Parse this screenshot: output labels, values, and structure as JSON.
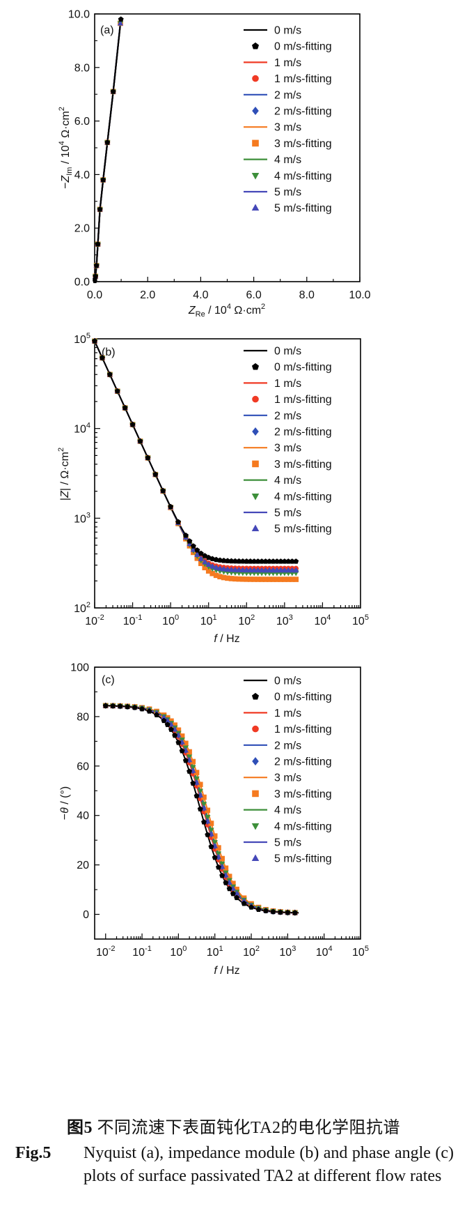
{
  "colors": {
    "0": "#000000",
    "1": "#f03a24",
    "2": "#2f4fb7",
    "3": "#f57a1f",
    "4": "#3d8f3a",
    "5": "#4548b8"
  },
  "legend_labels": [
    "0 m/s",
    "0 m/s-fitting",
    "1 m/s",
    "1 m/s-fitting",
    "2 m/s",
    "2 m/s-fitting",
    "3 m/s",
    "3 m/s-fitting",
    "4 m/s",
    "4 m/s-fitting",
    "5 m/s",
    "5 m/s-fitting"
  ],
  "chart_data": [
    {
      "type": "scatter",
      "panel": "(a)",
      "xlabel": "Z_Re / 10^4 Ω·cm^2",
      "ylabel": "−Z_Im / 10^4 Ω·cm^2",
      "xlim": [
        0,
        10
      ],
      "ylim": [
        0,
        10
      ],
      "xticks": [
        "0.0",
        "2.0",
        "4.0",
        "6.0",
        "8.0",
        "10.0"
      ],
      "yticks": [
        "0.0",
        "2.0",
        "4.0",
        "6.0",
        "8.0",
        "10.0"
      ],
      "legend_position": "top-right",
      "series": [
        {
          "name": "0 m/s",
          "x": [
            0.03,
            0.07,
            0.12,
            0.2,
            0.32,
            0.48,
            0.7,
            0.99
          ],
          "y": [
            0.2,
            0.6,
            1.4,
            2.7,
            3.8,
            5.2,
            7.1,
            9.8
          ]
        },
        {
          "name": "1 m/s",
          "x": [
            0.03,
            0.07,
            0.12,
            0.2,
            0.32,
            0.48,
            0.7,
            0.97
          ],
          "y": [
            0.2,
            0.6,
            1.4,
            2.7,
            3.8,
            5.2,
            7.1,
            9.65
          ]
        },
        {
          "name": "2 m/s",
          "x": [
            0.03,
            0.07,
            0.12,
            0.2,
            0.32,
            0.48,
            0.7,
            0.97
          ],
          "y": [
            0.2,
            0.6,
            1.4,
            2.7,
            3.8,
            5.2,
            7.1,
            9.65
          ]
        },
        {
          "name": "3 m/s",
          "x": [
            0.03,
            0.07,
            0.12,
            0.2,
            0.32,
            0.48,
            0.7,
            0.97
          ],
          "y": [
            0.2,
            0.6,
            1.4,
            2.7,
            3.8,
            5.2,
            7.1,
            9.65
          ]
        },
        {
          "name": "4 m/s",
          "x": [
            0.03,
            0.07,
            0.12,
            0.2,
            0.32,
            0.48,
            0.7,
            0.97
          ],
          "y": [
            0.2,
            0.6,
            1.4,
            2.7,
            3.8,
            5.2,
            7.1,
            9.65
          ]
        },
        {
          "name": "5 m/s",
          "x": [
            0.03,
            0.07,
            0.12,
            0.2,
            0.32,
            0.48,
            0.7,
            0.97
          ],
          "y": [
            0.2,
            0.6,
            1.4,
            2.7,
            3.8,
            5.2,
            7.1,
            9.65
          ]
        }
      ]
    },
    {
      "type": "line",
      "panel": "(b)",
      "xlabel": "f / Hz",
      "ylabel": "|Z| / Ω·cm^2",
      "xscale": "log",
      "yscale": "log",
      "xlim": [
        0.01,
        100000
      ],
      "ylim": [
        100,
        100000
      ],
      "legend_position": "top-right",
      "model": {
        "curve": "|Z| = sqrt(Rs^2 + (C/f^0.93)^2)",
        "C": 1300
      },
      "f_range": [
        0.01,
        2500
      ],
      "series": [
        {
          "name": "0 m/s",
          "Rs": 330
        },
        {
          "name": "1 m/s",
          "Rs": 275
        },
        {
          "name": "2 m/s",
          "Rs": 260
        },
        {
          "name": "3 m/s",
          "Rs": 208
        },
        {
          "name": "4 m/s",
          "Rs": 245
        },
        {
          "name": "5 m/s",
          "Rs": 262
        }
      ]
    },
    {
      "type": "line",
      "panel": "(c)",
      "xlabel": "f / Hz",
      "ylabel": "−θ / (°)",
      "xscale": "log",
      "xlim": [
        0.005,
        100000
      ],
      "ylim": [
        -10,
        100
      ],
      "yticks": [
        0,
        20,
        40,
        60,
        80,
        100
      ],
      "legend_position": "top-right",
      "model": {
        "curve": "−θ = 84 · (1 − 1/(1+(fc/f)^1.1))",
        "unit": "Hz"
      },
      "f_range": [
        0.01,
        2500
      ],
      "series": [
        {
          "name": "0 m/s",
          "fc": 4.0
        },
        {
          "name": "1 m/s",
          "fc": 4.8
        },
        {
          "name": "2 m/s",
          "fc": 5.1
        },
        {
          "name": "3 m/s",
          "fc": 6.2
        },
        {
          "name": "4 m/s",
          "fc": 5.5
        },
        {
          "name": "5 m/s",
          "fc": 5.1
        }
      ]
    }
  ],
  "caption": {
    "cn_label": "图5",
    "cn_text": "不同流速下表面钝化TA2的电化学阻抗谱",
    "en_label": "Fig.5",
    "en_text": "Nyquist (a), impedance module (b) and phase angle (c) plots of surface passivated TA2 at different flow rates"
  }
}
